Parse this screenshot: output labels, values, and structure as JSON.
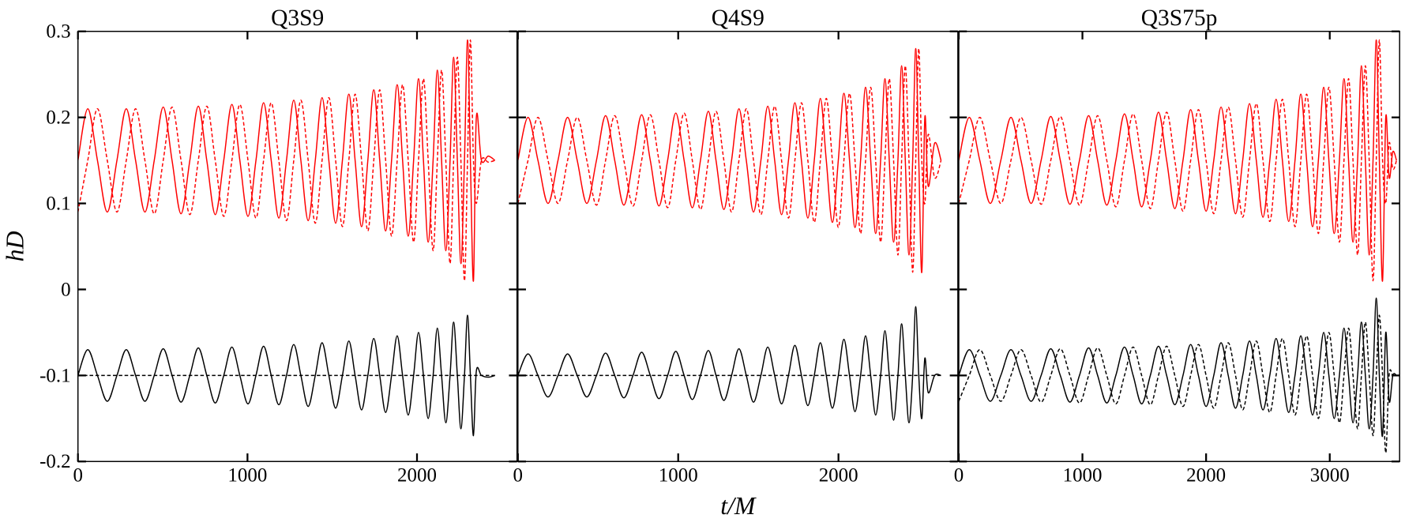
{
  "chart_data": [
    {
      "type": "line",
      "title": "Q3S9",
      "ylabel": "hD",
      "xlim": [
        0,
        2590
      ],
      "xticks": [
        0,
        1000,
        2000
      ],
      "ylim": [
        -0.2,
        0.3
      ],
      "yticks": [
        -0.2,
        -0.1,
        0,
        0.1,
        0.2,
        0.3
      ],
      "x": [
        0,
        58,
        115,
        173,
        230,
        285,
        340,
        395,
        450,
        503,
        555,
        608,
        660,
        710,
        760,
        810,
        860,
        908,
        955,
        1003,
        1050,
        1095,
        1140,
        1185,
        1230,
        1273,
        1315,
        1358,
        1400,
        1440,
        1480,
        1520,
        1560,
        1598,
        1635,
        1673,
        1710,
        1745,
        1780,
        1815,
        1850,
        1883,
        1915,
        1948,
        1980,
        2009,
        2038,
        2066,
        2095,
        2120,
        2145,
        2170,
        2195,
        2216,
        2238,
        2259,
        2280,
        2298,
        2315,
        2333,
        2350,
        2380,
        2420,
        2460
      ],
      "series": [
        {
          "color": "#ff0000",
          "linestyle": "solid",
          "values": [
            0.15,
            0.21,
            0.15,
            0.09,
            0.15,
            0.21,
            0.15,
            0.09,
            0.15,
            0.212,
            0.15,
            0.088,
            0.15,
            0.213,
            0.15,
            0.087,
            0.15,
            0.215,
            0.15,
            0.085,
            0.15,
            0.217,
            0.15,
            0.083,
            0.15,
            0.22,
            0.15,
            0.08,
            0.15,
            0.223,
            0.15,
            0.077,
            0.15,
            0.227,
            0.15,
            0.073,
            0.15,
            0.232,
            0.15,
            0.068,
            0.15,
            0.238,
            0.15,
            0.062,
            0.15,
            0.245,
            0.15,
            0.055,
            0.15,
            0.255,
            0.15,
            0.045,
            0.15,
            0.27,
            0.15,
            0.03,
            0.15,
            0.29,
            0.15,
            0.01,
            0.2,
            0.15,
            0.155,
            0.15
          ]
        },
        {
          "color": "#ff0000",
          "linestyle": "dashed",
          "values": [
            0.09,
            0.15,
            0.21,
            0.15,
            0.09,
            0.15,
            0.21,
            0.15,
            0.088,
            0.15,
            0.212,
            0.15,
            0.087,
            0.15,
            0.213,
            0.15,
            0.085,
            0.15,
            0.215,
            0.15,
            0.083,
            0.15,
            0.217,
            0.15,
            0.08,
            0.15,
            0.22,
            0.15,
            0.077,
            0.15,
            0.223,
            0.15,
            0.073,
            0.15,
            0.227,
            0.15,
            0.068,
            0.15,
            0.232,
            0.15,
            0.062,
            0.15,
            0.238,
            0.15,
            0.055,
            0.15,
            0.245,
            0.15,
            0.045,
            0.15,
            0.255,
            0.15,
            0.03,
            0.15,
            0.27,
            0.15,
            0.01,
            0.15,
            0.29,
            0.15,
            0.1,
            0.15,
            0.148,
            0.15
          ]
        },
        {
          "color": "#000000",
          "linestyle": "solid",
          "values": [
            -0.1,
            -0.07,
            -0.1,
            -0.13,
            -0.1,
            -0.07,
            -0.1,
            -0.13,
            -0.1,
            -0.069,
            -0.1,
            -0.131,
            -0.1,
            -0.068,
            -0.1,
            -0.132,
            -0.1,
            -0.067,
            -0.1,
            -0.133,
            -0.1,
            -0.066,
            -0.1,
            -0.134,
            -0.1,
            -0.064,
            -0.1,
            -0.136,
            -0.1,
            -0.062,
            -0.1,
            -0.138,
            -0.1,
            -0.06,
            -0.1,
            -0.14,
            -0.1,
            -0.057,
            -0.1,
            -0.143,
            -0.1,
            -0.054,
            -0.1,
            -0.146,
            -0.1,
            -0.05,
            -0.1,
            -0.15,
            -0.1,
            -0.045,
            -0.1,
            -0.155,
            -0.1,
            -0.038,
            -0.1,
            -0.162,
            -0.1,
            -0.03,
            -0.1,
            -0.17,
            -0.095,
            -0.1,
            -0.102,
            -0.1
          ]
        },
        {
          "color": "#000000",
          "linestyle": "dashed",
          "values": [
            -0.1,
            -0.1,
            -0.1,
            -0.1,
            -0.1,
            -0.1,
            -0.1,
            -0.1,
            -0.1,
            -0.1,
            -0.1,
            -0.1,
            -0.1,
            -0.1,
            -0.1,
            -0.1,
            -0.1,
            -0.1,
            -0.1,
            -0.1,
            -0.1,
            -0.1,
            -0.1,
            -0.1,
            -0.1,
            -0.1,
            -0.1,
            -0.1,
            -0.1,
            -0.1,
            -0.1,
            -0.1,
            -0.1,
            -0.1,
            -0.1,
            -0.1,
            -0.1,
            -0.1,
            -0.1,
            -0.1,
            -0.1,
            -0.1,
            -0.1,
            -0.1,
            -0.1,
            -0.1,
            -0.1,
            -0.1,
            -0.1,
            -0.1,
            -0.1,
            -0.1,
            -0.1,
            -0.1,
            -0.1,
            -0.1,
            -0.1,
            -0.1,
            -0.1,
            -0.1,
            -0.1,
            -0.1,
            -0.1,
            -0.1
          ]
        }
      ]
    },
    {
      "type": "line",
      "title": "Q4S9",
      "xlabel": "t/M",
      "xlim": [
        0,
        2745
      ],
      "xticks": [
        0,
        1000,
        2000
      ],
      "ylim": [
        -0.2,
        0.3
      ],
      "yticks": [
        -0.2,
        -0.1,
        0,
        0.1,
        0.2,
        0.3
      ],
      "x": [
        0,
        63,
        125,
        188,
        250,
        310,
        370,
        430,
        490,
        547,
        604,
        661,
        718,
        772,
        826,
        880,
        934,
        985,
        1037,
        1088,
        1139,
        1188,
        1236,
        1285,
        1333,
        1379,
        1425,
        1470,
        1516,
        1559,
        1602,
        1645,
        1688,
        1728,
        1769,
        1809,
        1849,
        1887,
        1924,
        1962,
        1999,
        2034,
        2069,
        2103,
        2138,
        2169,
        2201,
        2232,
        2263,
        2290,
        2317,
        2344,
        2371,
        2394,
        2417,
        2440,
        2463,
        2482,
        2501,
        2520,
        2539,
        2560,
        2600,
        2640
      ],
      "series": [
        {
          "color": "#ff0000",
          "linestyle": "solid",
          "values": [
            0.15,
            0.2,
            0.15,
            0.1,
            0.15,
            0.2,
            0.15,
            0.1,
            0.15,
            0.202,
            0.15,
            0.098,
            0.15,
            0.203,
            0.15,
            0.097,
            0.15,
            0.205,
            0.15,
            0.095,
            0.15,
            0.207,
            0.15,
            0.093,
            0.15,
            0.21,
            0.15,
            0.09,
            0.15,
            0.213,
            0.15,
            0.087,
            0.15,
            0.217,
            0.15,
            0.083,
            0.15,
            0.222,
            0.15,
            0.078,
            0.15,
            0.228,
            0.15,
            0.072,
            0.15,
            0.235,
            0.15,
            0.065,
            0.15,
            0.245,
            0.15,
            0.055,
            0.15,
            0.26,
            0.15,
            0.04,
            0.15,
            0.28,
            0.15,
            0.02,
            0.2,
            0.12,
            0.17,
            0.15
          ]
        },
        {
          "color": "#ff0000",
          "linestyle": "dashed",
          "values": [
            0.1,
            0.15,
            0.2,
            0.15,
            0.1,
            0.15,
            0.2,
            0.15,
            0.098,
            0.15,
            0.202,
            0.15,
            0.097,
            0.15,
            0.203,
            0.15,
            0.095,
            0.15,
            0.205,
            0.15,
            0.093,
            0.15,
            0.207,
            0.15,
            0.09,
            0.15,
            0.21,
            0.15,
            0.087,
            0.15,
            0.213,
            0.15,
            0.083,
            0.15,
            0.217,
            0.15,
            0.078,
            0.15,
            0.222,
            0.15,
            0.072,
            0.15,
            0.228,
            0.15,
            0.065,
            0.15,
            0.235,
            0.15,
            0.055,
            0.15,
            0.245,
            0.15,
            0.04,
            0.15,
            0.26,
            0.15,
            0.02,
            0.15,
            0.28,
            0.15,
            0.1,
            0.18,
            0.13,
            0.15
          ]
        },
        {
          "color": "#000000",
          "linestyle": "solid",
          "values": [
            -0.1,
            -0.075,
            -0.1,
            -0.125,
            -0.1,
            -0.075,
            -0.1,
            -0.125,
            -0.1,
            -0.074,
            -0.1,
            -0.126,
            -0.1,
            -0.073,
            -0.1,
            -0.127,
            -0.1,
            -0.072,
            -0.1,
            -0.128,
            -0.1,
            -0.071,
            -0.1,
            -0.129,
            -0.1,
            -0.069,
            -0.1,
            -0.131,
            -0.1,
            -0.067,
            -0.1,
            -0.133,
            -0.1,
            -0.065,
            -0.1,
            -0.135,
            -0.1,
            -0.062,
            -0.1,
            -0.138,
            -0.1,
            -0.058,
            -0.1,
            -0.142,
            -0.1,
            -0.054,
            -0.1,
            -0.146,
            -0.1,
            -0.048,
            -0.1,
            -0.152,
            -0.1,
            -0.04,
            -0.1,
            -0.155,
            -0.1,
            -0.02,
            -0.1,
            -0.15,
            -0.08,
            -0.12,
            -0.1,
            -0.1
          ]
        },
        {
          "color": "#000000",
          "linestyle": "dashed",
          "values": [
            -0.1,
            -0.1,
            -0.1,
            -0.1,
            -0.1,
            -0.1,
            -0.1,
            -0.1,
            -0.1,
            -0.1,
            -0.1,
            -0.1,
            -0.1,
            -0.1,
            -0.1,
            -0.1,
            -0.1,
            -0.1,
            -0.1,
            -0.1,
            -0.1,
            -0.1,
            -0.1,
            -0.1,
            -0.1,
            -0.1,
            -0.1,
            -0.1,
            -0.1,
            -0.1,
            -0.1,
            -0.1,
            -0.1,
            -0.1,
            -0.1,
            -0.1,
            -0.1,
            -0.1,
            -0.1,
            -0.1,
            -0.1,
            -0.1,
            -0.1,
            -0.1,
            -0.1,
            -0.1,
            -0.1,
            -0.1,
            -0.1,
            -0.1,
            -0.1,
            -0.1,
            -0.1,
            -0.1,
            -0.1,
            -0.1,
            -0.1,
            -0.1,
            -0.1,
            -0.1,
            -0.1,
            -0.1,
            -0.1,
            -0.1
          ]
        }
      ]
    },
    {
      "type": "line",
      "title": "Q3S75p",
      "xlim": [
        0,
        3565
      ],
      "xticks": [
        0,
        1000,
        2000,
        3000
      ],
      "ylim": [
        -0.2,
        0.3
      ],
      "yticks": [
        -0.2,
        -0.1,
        0,
        0.1,
        0.2,
        0.3
      ],
      "x": [
        0,
        85,
        170,
        255,
        340,
        422,
        503,
        585,
        666,
        744,
        821,
        899,
        976,
        1050,
        1123,
        1197,
        1270,
        1340,
        1410,
        1479,
        1549,
        1615,
        1681,
        1747,
        1813,
        1875,
        1938,
        2000,
        2062,
        2121,
        2179,
        2238,
        2296,
        2351,
        2406,
        2460,
        2515,
        2566,
        2617,
        2668,
        2719,
        2766,
        2813,
        2861,
        2908,
        2951,
        2993,
        3036,
        3078,
        3115,
        3152,
        3188,
        3225,
        3256,
        3288,
        3319,
        3350,
        3376,
        3401,
        3427,
        3453,
        3480,
        3510,
        3540
      ],
      "series": [
        {
          "color": "#ff0000",
          "linestyle": "solid",
          "values": [
            0.15,
            0.2,
            0.15,
            0.1,
            0.15,
            0.2,
            0.15,
            0.1,
            0.15,
            0.201,
            0.15,
            0.099,
            0.15,
            0.202,
            0.15,
            0.098,
            0.15,
            0.204,
            0.15,
            0.096,
            0.15,
            0.206,
            0.15,
            0.094,
            0.15,
            0.209,
            0.15,
            0.091,
            0.15,
            0.212,
            0.15,
            0.088,
            0.15,
            0.216,
            0.15,
            0.084,
            0.15,
            0.221,
            0.15,
            0.079,
            0.15,
            0.227,
            0.15,
            0.073,
            0.15,
            0.235,
            0.15,
            0.065,
            0.15,
            0.245,
            0.15,
            0.055,
            0.15,
            0.26,
            0.15,
            0.04,
            0.15,
            0.29,
            0.15,
            0.01,
            0.2,
            0.13,
            0.16,
            0.15
          ]
        },
        {
          "color": "#ff0000",
          "linestyle": "dashed",
          "values": [
            0.1,
            0.15,
            0.2,
            0.15,
            0.1,
            0.15,
            0.2,
            0.15,
            0.099,
            0.15,
            0.201,
            0.15,
            0.098,
            0.15,
            0.202,
            0.15,
            0.096,
            0.15,
            0.204,
            0.15,
            0.094,
            0.15,
            0.206,
            0.15,
            0.091,
            0.15,
            0.209,
            0.15,
            0.088,
            0.15,
            0.212,
            0.15,
            0.084,
            0.15,
            0.216,
            0.15,
            0.079,
            0.15,
            0.221,
            0.15,
            0.073,
            0.15,
            0.227,
            0.15,
            0.065,
            0.15,
            0.235,
            0.15,
            0.055,
            0.15,
            0.245,
            0.15,
            0.04,
            0.15,
            0.26,
            0.15,
            0.01,
            0.15,
            0.29,
            0.15,
            0.1,
            0.17,
            0.14,
            0.15
          ]
        },
        {
          "color": "#000000",
          "linestyle": "solid",
          "values": [
            -0.1,
            -0.07,
            -0.1,
            -0.13,
            -0.1,
            -0.07,
            -0.1,
            -0.13,
            -0.1,
            -0.069,
            -0.1,
            -0.131,
            -0.1,
            -0.068,
            -0.1,
            -0.132,
            -0.1,
            -0.067,
            -0.1,
            -0.133,
            -0.1,
            -0.066,
            -0.1,
            -0.134,
            -0.1,
            -0.064,
            -0.1,
            -0.136,
            -0.1,
            -0.062,
            -0.1,
            -0.138,
            -0.1,
            -0.06,
            -0.1,
            -0.14,
            -0.1,
            -0.057,
            -0.1,
            -0.143,
            -0.1,
            -0.054,
            -0.1,
            -0.146,
            -0.1,
            -0.05,
            -0.1,
            -0.15,
            -0.1,
            -0.045,
            -0.1,
            -0.155,
            -0.1,
            -0.038,
            -0.1,
            -0.162,
            -0.1,
            -0.01,
            -0.1,
            -0.17,
            -0.05,
            -0.13,
            -0.1,
            -0.1
          ]
        },
        {
          "color": "#000000",
          "linestyle": "dashed",
          "values": [
            -0.13,
            -0.1,
            -0.07,
            -0.1,
            -0.13,
            -0.1,
            -0.07,
            -0.1,
            -0.131,
            -0.1,
            -0.069,
            -0.1,
            -0.132,
            -0.1,
            -0.068,
            -0.1,
            -0.133,
            -0.1,
            -0.067,
            -0.1,
            -0.134,
            -0.1,
            -0.066,
            -0.1,
            -0.136,
            -0.1,
            -0.064,
            -0.1,
            -0.138,
            -0.1,
            -0.062,
            -0.1,
            -0.14,
            -0.1,
            -0.06,
            -0.1,
            -0.143,
            -0.1,
            -0.057,
            -0.1,
            -0.146,
            -0.1,
            -0.054,
            -0.1,
            -0.15,
            -0.1,
            -0.05,
            -0.1,
            -0.155,
            -0.1,
            -0.045,
            -0.1,
            -0.162,
            -0.1,
            -0.038,
            -0.1,
            -0.17,
            -0.1,
            -0.03,
            -0.1,
            -0.19,
            -0.1,
            -0.1,
            -0.1
          ]
        }
      ]
    }
  ]
}
